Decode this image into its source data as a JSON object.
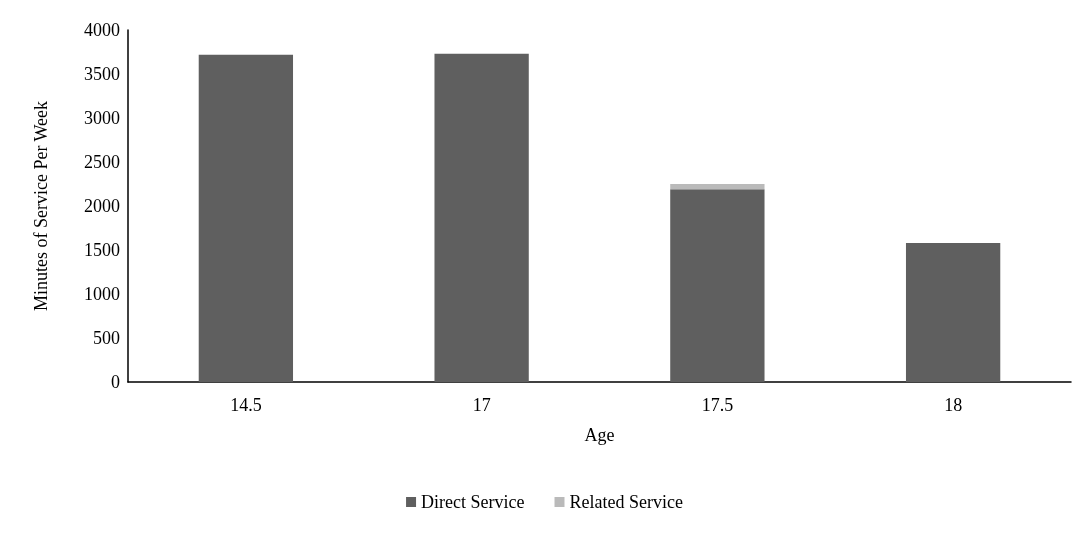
{
  "chart_data": {
    "type": "bar",
    "stacked": true,
    "xlabel": "Age",
    "ylabel": "Minutes of Service Per Week",
    "categories": [
      "14.5",
      "17",
      "17.5",
      "18"
    ],
    "series": [
      {
        "name": "Direct Service",
        "color": "#5f5f5f",
        "values": [
          3720,
          3730,
          2190,
          1580
        ]
      },
      {
        "name": "Related Service",
        "color": "#bababa",
        "values": [
          0,
          0,
          60,
          0
        ]
      }
    ],
    "ylim": [
      0,
      4000
    ],
    "yticks": [
      0,
      500,
      1000,
      1500,
      2000,
      2500,
      3000,
      3500,
      4000
    ],
    "grid": false,
    "legend": "bottom"
  }
}
